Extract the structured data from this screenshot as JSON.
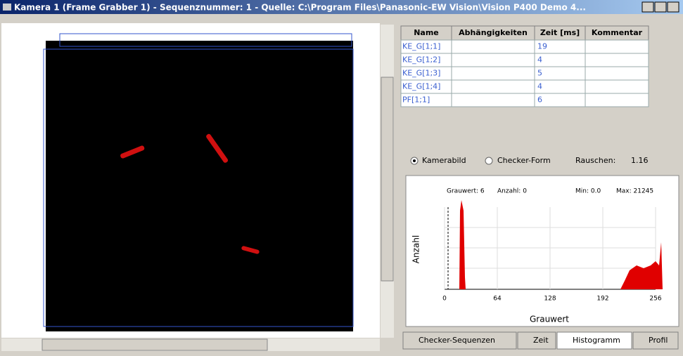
{
  "window": {
    "title": "Kamera  1  (Frame Grabber 1) - Sequenznummer: 1 - Quelle: C:\\Program Files\\Panasonic-EW Vision\\Vision P400 Demo 4..."
  },
  "table": {
    "headers": [
      "Name",
      "Abhängigkeiten",
      "Zeit [ms]",
      "Kommentar"
    ],
    "rows": [
      {
        "name": "KE_G[1;1]",
        "zeit": "19"
      },
      {
        "name": "KE_G[1;2]",
        "zeit": "4"
      },
      {
        "name": "KE_G[1;3]",
        "zeit": "5"
      },
      {
        "name": "KE_G[1;4]",
        "zeit": "4"
      },
      {
        "name": "PF[1;1]",
        "zeit": "6"
      }
    ]
  },
  "options": {
    "kamerabild": "Kamerabild",
    "checker_form": "Checker-Form",
    "rauschen_label": "Rauschen:",
    "rauschen_value": "1.16"
  },
  "histogram": {
    "grauwert": "Grauwert: 6",
    "anzahl": "Anzahl: 0",
    "min": "Min: 0.0",
    "max": "Max: 21245",
    "xlim": [
      0,
      256
    ],
    "xticks": [
      0,
      64,
      128,
      192,
      256
    ],
    "xlabel": "Grauwert",
    "ylabel": "Anzahl"
  },
  "tabs": [
    "Checker-Sequenzen",
    "Zeit",
    "Histogramm",
    "Profil"
  ]
}
